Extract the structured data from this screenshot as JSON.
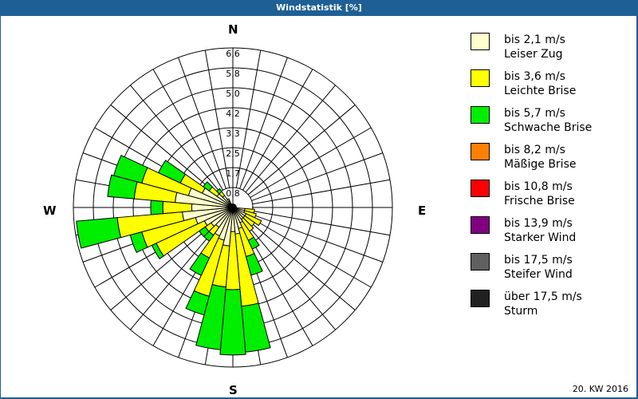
{
  "title": "Windstatistik [%]",
  "footer": "20. KW 2016",
  "compass": {
    "n": "N",
    "e": "E",
    "s": "S",
    "w": "W"
  },
  "legend": [
    {
      "speed": "bis 2,1 m/s",
      "name": "Leiser Zug",
      "color": "#ffffcc"
    },
    {
      "speed": "bis 3,6 m/s",
      "name": "Leichte Brise",
      "color": "#ffff00"
    },
    {
      "speed": "bis 5,7 m/s",
      "name": "Schwache Brise",
      "color": "#00ee00"
    },
    {
      "speed": "bis 8,2 m/s",
      "name": "Mäßige Brise",
      "color": "#ff8000"
    },
    {
      "speed": "bis 10,8 m/s",
      "name": "Frische Brise",
      "color": "#ff0000"
    },
    {
      "speed": "bis 13,9 m/s",
      "name": "Starker Wind",
      "color": "#800080"
    },
    {
      "speed": "bis 17,5 m/s",
      "name": "Steifer Wind",
      "color": "#606060"
    },
    {
      "speed": "über 17,5 m/s",
      "name": "Sturm",
      "color": "#202020"
    }
  ],
  "chart_data": {
    "type": "wind-rose",
    "title": "Windstatistik [%]",
    "radial_ticks": [
      "0,8",
      "1,7",
      "2,5",
      "3,3",
      "4,2",
      "5,0",
      "5,8",
      "6,6"
    ],
    "rmax": 6.6,
    "sector_width_deg": 10,
    "series_names": [
      "bis 2,1 m/s",
      "bis 3,6 m/s",
      "bis 5,7 m/s"
    ],
    "note": "cumulative percent per direction (cream, yellow, green)",
    "directions": [
      {
        "deg": 100,
        "cum": [
          0.5,
          0.9,
          0.9
        ]
      },
      {
        "deg": 110,
        "cum": [
          0.5,
          1.0,
          1.0
        ]
      },
      {
        "deg": 120,
        "cum": [
          0.6,
          1.3,
          1.3
        ]
      },
      {
        "deg": 130,
        "cum": [
          0.6,
          1.1,
          1.1
        ]
      },
      {
        "deg": 140,
        "cum": [
          0.6,
          1.2,
          1.2
        ]
      },
      {
        "deg": 150,
        "cum": [
          0.7,
          1.5,
          1.9
        ]
      },
      {
        "deg": 160,
        "cum": [
          0.9,
          2.1,
          2.9
        ]
      },
      {
        "deg": 170,
        "cum": [
          1.1,
          4.1,
          6.0
        ]
      },
      {
        "deg": 180,
        "cum": [
          1.0,
          3.4,
          6.1
        ]
      },
      {
        "deg": 190,
        "cum": [
          1.6,
          3.3,
          5.9
        ]
      },
      {
        "deg": 200,
        "cum": [
          1.4,
          3.8,
          4.6
        ]
      },
      {
        "deg": 210,
        "cum": [
          1.3,
          2.3,
          3.1
        ]
      },
      {
        "deg": 220,
        "cum": [
          1.0,
          1.4,
          1.7
        ]
      },
      {
        "deg": 230,
        "cum": [
          1.1,
          1.4,
          1.7
        ]
      },
      {
        "deg": 240,
        "cum": [
          1.3,
          3.5,
          3.7
        ]
      },
      {
        "deg": 250,
        "cum": [
          1.6,
          3.9,
          4.4
        ]
      },
      {
        "deg": 260,
        "cum": [
          2.1,
          4.8,
          6.5
        ]
      },
      {
        "deg": 270,
        "cum": [
          1.7,
          2.9,
          3.4
        ]
      },
      {
        "deg": 280,
        "cum": [
          2.4,
          4.1,
          5.2
        ]
      },
      {
        "deg": 290,
        "cum": [
          1.9,
          3.9,
          5.1
        ]
      },
      {
        "deg": 300,
        "cum": [
          1.4,
          2.4,
          3.4
        ]
      },
      {
        "deg": 310,
        "cum": [
          0.8,
          1.2,
          1.5
        ]
      },
      {
        "deg": 320,
        "cum": [
          0.6,
          0.8,
          0.95
        ]
      },
      {
        "deg": 330,
        "cum": [
          0.3,
          0.4,
          0.4
        ]
      }
    ]
  }
}
